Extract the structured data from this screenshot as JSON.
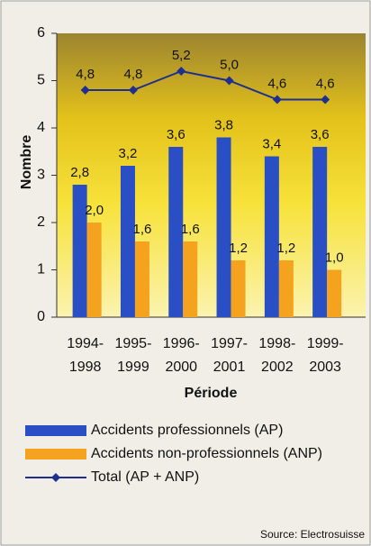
{
  "chart_data": {
    "type": "bar",
    "y_label": "Nombre",
    "x_label": "Période",
    "categories": [
      "1994-1998",
      "1995-1999",
      "1996-2000",
      "1997-2001",
      "1998-2002",
      "1999-2003"
    ],
    "series": [
      {
        "name": "Accidents professionnels (AP)",
        "color": "#2a4fc4",
        "type": "bar",
        "values": [
          2.8,
          3.2,
          3.6,
          3.8,
          3.4,
          3.6
        ],
        "value_labels": [
          "2,8",
          "3,2",
          "3,6",
          "3,8",
          "3,4",
          "3,6"
        ]
      },
      {
        "name": "Accidents non-professionnels (ANP)",
        "color": "#f5a21e",
        "type": "bar",
        "values": [
          2.0,
          1.6,
          1.6,
          1.2,
          1.2,
          1.0
        ],
        "value_labels": [
          "2,0",
          "1,6",
          "1,6",
          "1,2",
          "1,2",
          "1,0"
        ]
      },
      {
        "name": "Total (AP + ANP)",
        "color": "#1f2f90",
        "type": "line",
        "values": [
          4.8,
          4.8,
          5.2,
          5.0,
          4.6,
          4.6
        ],
        "value_labels": [
          "4,8",
          "4,8",
          "5,2",
          "5,0",
          "4,6",
          "4,6"
        ]
      }
    ],
    "ylim": [
      0,
      6
    ],
    "yticks": [
      0,
      1,
      2,
      3,
      4,
      5,
      6
    ],
    "source": "Source: Electrosuisse"
  }
}
